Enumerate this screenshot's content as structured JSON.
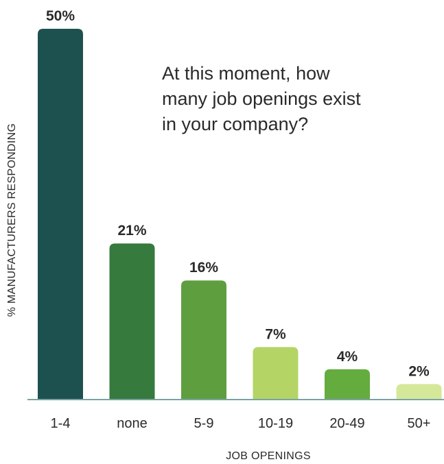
{
  "chart_data": {
    "type": "bar",
    "title": "At this moment, how many job openings exist in your company?",
    "title_lines": [
      "At this moment, how",
      "many job openings exist",
      "in your company?"
    ],
    "xlabel": "JOB OPENINGS",
    "ylabel": "% MANUFACTURERS  RESPONDING",
    "categories": [
      "1-4",
      "none",
      "5-9",
      "10-19",
      "20-49",
      "50+"
    ],
    "values": [
      50,
      21,
      16,
      7,
      4,
      2
    ],
    "value_labels": [
      "50%",
      "21%",
      "16%",
      "7%",
      "4%",
      "2%"
    ],
    "colors": [
      "#1d5150",
      "#367a3e",
      "#5f9e3f",
      "#b4d566",
      "#64ac3e",
      "#d5e89a"
    ],
    "ylim": [
      0,
      50
    ],
    "grid": false,
    "legend": "none"
  }
}
